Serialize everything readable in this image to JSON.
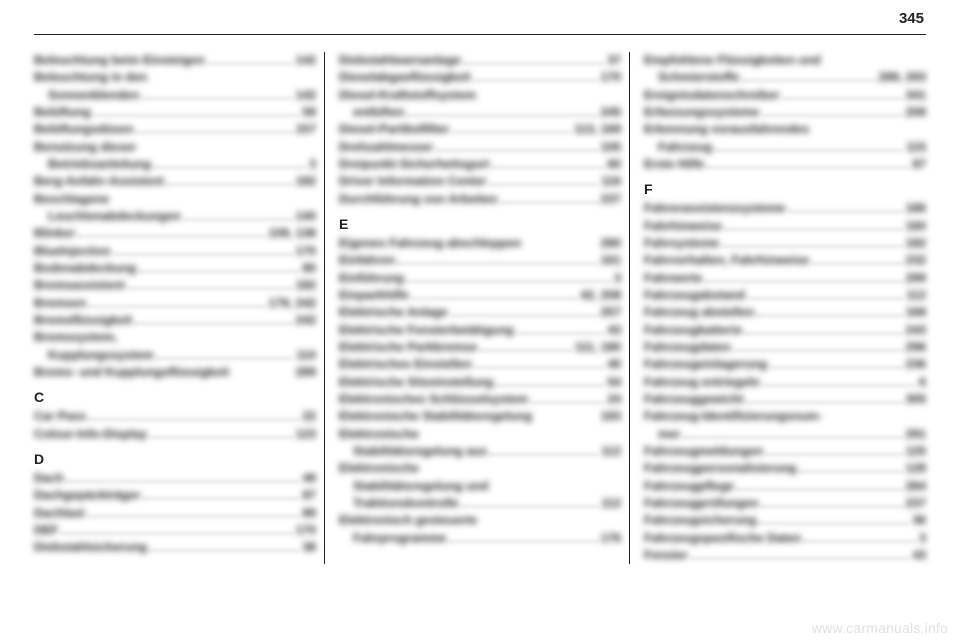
{
  "page_number": "345",
  "watermark": "www.carmanuals.info",
  "columns": [
    {
      "items": [
        {
          "type": "entry",
          "label": "Beleuchtung beim Einsteigen",
          "pages": "142"
        },
        {
          "type": "entry",
          "label": "Beleuchtung in den",
          "pages": "",
          "nodots": true
        },
        {
          "type": "entry",
          "indent": true,
          "label": "Sonnenblenden",
          "pages": "142"
        },
        {
          "type": "entry",
          "label": "Belüftung",
          "pages": "59"
        },
        {
          "type": "entry",
          "label": "Belüftungsdüsen",
          "pages": "157"
        },
        {
          "type": "entry",
          "label": "Benutzung dieser",
          "pages": "",
          "nodots": true
        },
        {
          "type": "entry",
          "indent": true,
          "label": "Betriebsanleitung",
          "pages": "3"
        },
        {
          "type": "entry",
          "label": "Berg-Anfahr-Assistent",
          "pages": "182"
        },
        {
          "type": "entry",
          "label": "Beschlagene",
          "pages": "",
          "nodots": true
        },
        {
          "type": "entry",
          "indent": true,
          "label": "Leuchtenabdeckungen",
          "pages": "140"
        },
        {
          "type": "entry",
          "label": "Blinker",
          "pages": "109, 138"
        },
        {
          "type": "entry",
          "label": "BlueInjection",
          "pages": "170"
        },
        {
          "type": "entry",
          "label": "Bodenabdeckung",
          "pages": "80"
        },
        {
          "type": "entry",
          "label": "Bremsassistent",
          "pages": "182"
        },
        {
          "type": "entry",
          "label": "Bremsen",
          "pages": "179, 242"
        },
        {
          "type": "entry",
          "label": "Bremsflüssigkeit",
          "pages": "242"
        },
        {
          "type": "entry",
          "label": "Bremssystem,",
          "pages": "",
          "nodots": true
        },
        {
          "type": "entry",
          "indent": true,
          "label": "Kupplungssystem",
          "pages": "110"
        },
        {
          "type": "entry",
          "label": "Brems- und Kupplungsflüssigkeit",
          "pages": "289",
          "nodots": true
        },
        {
          "type": "section",
          "label": "C"
        },
        {
          "type": "entry",
          "label": "Car Pass",
          "pages": "22"
        },
        {
          "type": "entry",
          "label": "Colour-Info-Display",
          "pages": "123"
        },
        {
          "type": "section",
          "label": "D"
        },
        {
          "type": "entry",
          "label": "Dach",
          "pages": "49"
        },
        {
          "type": "entry",
          "label": "Dachgepäckträger",
          "pages": "87"
        },
        {
          "type": "entry",
          "label": "Dachlast",
          "pages": "89"
        },
        {
          "type": "entry",
          "label": "DEF",
          "pages": "170"
        },
        {
          "type": "entry",
          "label": "Diebstahlsicherung",
          "pages": "38"
        }
      ]
    },
    {
      "items": [
        {
          "type": "entry",
          "label": "Diebstahlwarnanlage",
          "pages": "37"
        },
        {
          "type": "entry",
          "label": "Dieselabgasflüssigkeit",
          "pages": "170"
        },
        {
          "type": "entry",
          "label": "Diesel-Kraftstoffsystem",
          "pages": "",
          "nodots": true
        },
        {
          "type": "entry",
          "indent": true,
          "label": "entlüften",
          "pages": "245"
        },
        {
          "type": "entry",
          "label": "Diesel-Partikelfilter",
          "pages": "113, 169"
        },
        {
          "type": "entry",
          "label": "Drehzahlmesser",
          "pages": "105"
        },
        {
          "type": "entry",
          "label": "Dreipunkt-Sicherheitsgurt",
          "pages": "60"
        },
        {
          "type": "entry",
          "label": "Driver Information Center",
          "pages": "116"
        },
        {
          "type": "entry",
          "label": "Durchführung von Arbeiten",
          "pages": "237"
        },
        {
          "type": "section",
          "label": "E"
        },
        {
          "type": "entry",
          "label": "Eigenes Fahrzeug abschleppen",
          "pages": "280",
          "nodots": true
        },
        {
          "type": "entry",
          "label": "Einfahren",
          "pages": "161"
        },
        {
          "type": "entry",
          "label": "Einführung",
          "pages": "3"
        },
        {
          "type": "entry",
          "label": "Einparkhilfe",
          "pages": "42, 208"
        },
        {
          "type": "entry",
          "label": "Elektrische Anlage",
          "pages": "257"
        },
        {
          "type": "entry",
          "label": "Elektrische Fensterbetätigung",
          "pages": "43"
        },
        {
          "type": "entry",
          "label": "Elektrische Parkbremse",
          "pages": "111, 180"
        },
        {
          "type": "entry",
          "label": "Elektrisches Einstellen",
          "pages": "40"
        },
        {
          "type": "entry",
          "label": "Elektrische Sitzeinstellung",
          "pages": "54"
        },
        {
          "type": "entry",
          "label": "Elektronisches Schlüsselsystem",
          "pages": "24"
        },
        {
          "type": "entry",
          "label": "Elektronische Stabilitätsregelung",
          "pages": "183",
          "nodots": true
        },
        {
          "type": "entry",
          "label": "Elektronische",
          "pages": "",
          "nodots": true
        },
        {
          "type": "entry",
          "indent": true,
          "label": "Stabilitätsregelung aus",
          "pages": "112"
        },
        {
          "type": "entry",
          "label": "Elektronische",
          "pages": "",
          "nodots": true
        },
        {
          "type": "entry",
          "indent": true,
          "label": "Stabilitätsregelung und",
          "pages": "",
          "nodots": true
        },
        {
          "type": "entry",
          "indent": true,
          "label": "Traktionskontrolle",
          "pages": "112"
        },
        {
          "type": "entry",
          "label": "Elektronisch gesteuerte",
          "pages": "",
          "nodots": true
        },
        {
          "type": "entry",
          "indent": true,
          "label": "Fahrprogramme",
          "pages": "176"
        }
      ]
    },
    {
      "items": [
        {
          "type": "entry",
          "label": "Empfohlene Flüssigkeiten und",
          "pages": "",
          "nodots": true
        },
        {
          "type": "entry",
          "indent": true,
          "label": "Schmierstoffe",
          "pages": "289, 293"
        },
        {
          "type": "entry",
          "label": "Ereignisdatenschreiber",
          "pages": "341"
        },
        {
          "type": "entry",
          "label": "Erfassungssysteme",
          "pages": "208"
        },
        {
          "type": "entry",
          "label": "Erkennung vorausfahrendes",
          "pages": "",
          "nodots": true
        },
        {
          "type": "entry",
          "indent": true,
          "label": "Fahrzeug",
          "pages": "115"
        },
        {
          "type": "entry",
          "label": "Erste Hilfe",
          "pages": "87"
        },
        {
          "type": "section",
          "label": "F"
        },
        {
          "type": "entry",
          "label": "Fahrerassistenzsysteme",
          "pages": "186"
        },
        {
          "type": "entry",
          "label": "Fahrhinweise",
          "pages": "160"
        },
        {
          "type": "entry",
          "label": "Fahrsysteme",
          "pages": "182"
        },
        {
          "type": "entry",
          "label": "Fahrverhalten, Fahrhinweise",
          "pages": "232"
        },
        {
          "type": "entry",
          "label": "Fahrwerte",
          "pages": "299"
        },
        {
          "type": "entry",
          "label": "Fahrzeugabstand",
          "pages": "112"
        },
        {
          "type": "entry",
          "label": "Fahrzeug abstellen",
          "pages": "168"
        },
        {
          "type": "entry",
          "label": "Fahrzeugbatterie",
          "pages": "243"
        },
        {
          "type": "entry",
          "label": "Fahrzeugdaten",
          "pages": "296"
        },
        {
          "type": "entry",
          "label": "Fahrzeugeinlagerung",
          "pages": "236"
        },
        {
          "type": "entry",
          "label": "Fahrzeug entriegeln",
          "pages": "6"
        },
        {
          "type": "entry",
          "label": "Fahrzeuggewicht",
          "pages": "305"
        },
        {
          "type": "entry",
          "label": "Fahrzeug-Identifizierungsnum-",
          "pages": "",
          "nodots": true
        },
        {
          "type": "entry",
          "indent": true,
          "label": "mer",
          "pages": "291"
        },
        {
          "type": "entry",
          "label": "Fahrzeugmeldungen",
          "pages": "125"
        },
        {
          "type": "entry",
          "label": "Fahrzeugpersonalisierung",
          "pages": "128"
        },
        {
          "type": "entry",
          "label": "Fahrzeugpflege",
          "pages": "284"
        },
        {
          "type": "entry",
          "label": "Fahrzeugprüfungen",
          "pages": "237"
        },
        {
          "type": "entry",
          "label": "Fahrzeugsicherung",
          "pages": "36"
        },
        {
          "type": "entry",
          "label": "Fahrzeugspezifische Daten",
          "pages": "3"
        },
        {
          "type": "entry",
          "label": "Fenster",
          "pages": "43"
        }
      ]
    }
  ]
}
